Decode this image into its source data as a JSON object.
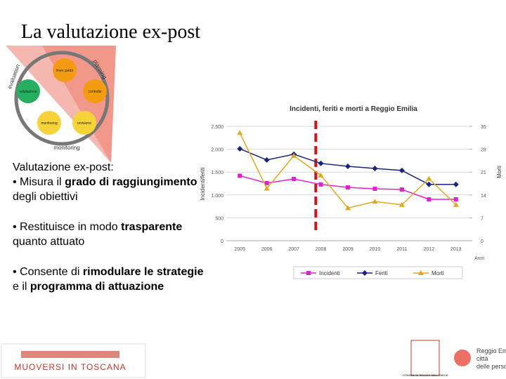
{
  "title": "La valutazione ex-post",
  "diagram": {
    "arcs": [
      "evaluation",
      "planning",
      "monitoring"
    ],
    "nodes": [
      "linee guida",
      "valutazione",
      "controllo",
      "monitoring",
      "revisione"
    ]
  },
  "text": {
    "heading": "Valutazione ex-post:",
    "bullets": [
      [
        "• Misura il ",
        "grado di raggiungimento",
        " degli obiettivi"
      ],
      [
        "• Restituisce in modo ",
        "trasparente",
        " quanto attuato"
      ],
      [
        "• Consente di ",
        "rimodulare le strategie",
        " e il ",
        "programma di attuazione"
      ]
    ]
  },
  "chart_data": {
    "type": "line",
    "title": "Incidenti, feriti e morti a Reggio Emilia",
    "y_label": "Incidenti/feriti",
    "y2_label": "Morti",
    "x_label": "Anni",
    "categories": [
      "2005",
      "2006",
      "2007",
      "2008",
      "2009",
      "2010",
      "2011",
      "2012",
      "2013"
    ],
    "ylim": [
      0,
      2500
    ],
    "yticks": [
      0,
      500,
      {
        "value": 1000,
        "label": "1.000"
      },
      {
        "value": 1500,
        "label": "1.500"
      },
      {
        "value": 2000,
        "label": "2.000"
      },
      {
        "value": 2500,
        "label": "2.500"
      }
    ],
    "y2lim": [
      0,
      35
    ],
    "y2ticks": [
      0,
      7,
      14,
      21,
      28,
      35
    ],
    "grid": true,
    "legend": "bottom",
    "series": [
      {
        "name": "Incidenti",
        "color": "#e020d0",
        "marker": "square",
        "values": [
          1420,
          1260,
          1350,
          1230,
          1165,
          1135,
          1120,
          905,
          905
        ]
      },
      {
        "name": "Feriti",
        "color": "#1a237e",
        "marker": "diamond",
        "values": [
          2010,
          1765,
          1890,
          1690,
          1625,
          1580,
          1535,
          1230,
          1230
        ]
      },
      {
        "name": "Morti",
        "color": "#e0a81c",
        "marker": "triangle",
        "axis": "y2",
        "values": [
          33,
          16,
          26,
          20,
          10,
          12,
          11,
          19,
          11
        ]
      }
    ]
  },
  "logos": {
    "left": "MUOVERSI IN TOSCANA",
    "right_top": "Reggio Emilia",
    "right_middle": "città",
    "right_bottom": "delle persone",
    "crest": "COMUNE DI REGGIO NELL'EMILIA"
  }
}
